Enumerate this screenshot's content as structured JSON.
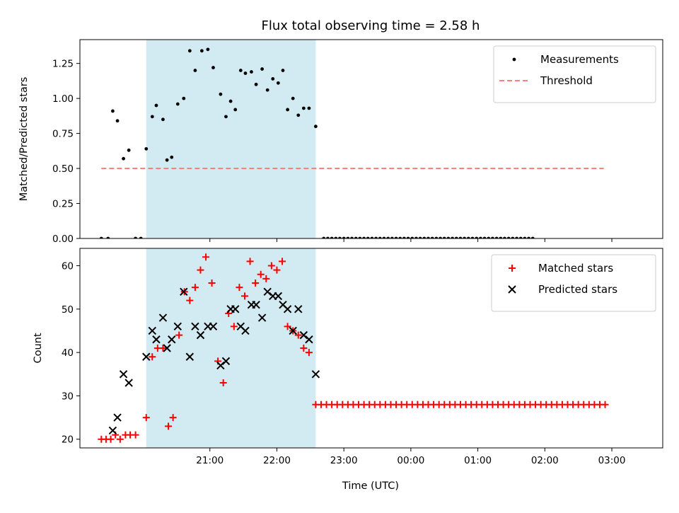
{
  "chart_data": {
    "title": "Flux total observing time = 2.58 h",
    "xlabel": "Time (UTC)",
    "time_unit": "hours after 20:00 UTC",
    "xlim": [
      -0.94,
      7.76
    ],
    "x_ticks": [
      {
        "x": 1,
        "label": "21:00"
      },
      {
        "x": 2,
        "label": "22:00"
      },
      {
        "x": 3,
        "label": "23:00"
      },
      {
        "x": 4,
        "label": "00:00"
      },
      {
        "x": 5,
        "label": "01:00"
      },
      {
        "x": 6,
        "label": "02:00"
      },
      {
        "x": 7,
        "label": "03:00"
      }
    ],
    "colors": {
      "measurement": "#000000",
      "threshold": "#ff7f7f",
      "matched": "#ff0000",
      "predicted": "#000000",
      "shading": "#add8e6"
    },
    "panels": [
      {
        "type": "scatter",
        "ylabel": "Matched/Predicted stars",
        "ylim": [
          0,
          1.42
        ],
        "y_ticks": [
          "0.00",
          "0.25",
          "0.50",
          "0.75",
          "1.00",
          "1.25"
        ],
        "legend_position": "upper-right",
        "shaded_span": [
          0.05,
          2.58
        ],
        "threshold": {
          "name": "Threshold",
          "y": 0.5,
          "x_range": [
            -0.62,
            6.88
          ]
        },
        "series": [
          {
            "name": "Measurements",
            "points": [
              [
                -0.62,
                0
              ],
              [
                -0.52,
                0
              ],
              [
                -0.45,
                0.91
              ],
              [
                -0.38,
                0.84
              ],
              [
                -0.29,
                0.57
              ],
              [
                -0.21,
                0.63
              ],
              [
                -0.11,
                0
              ],
              [
                -0.03,
                0
              ],
              [
                0.05,
                0.64
              ],
              [
                0.14,
                0.87
              ],
              [
                0.2,
                0.95
              ],
              [
                0.3,
                0.85
              ],
              [
                0.36,
                0.56
              ],
              [
                0.43,
                0.58
              ],
              [
                0.52,
                0.96
              ],
              [
                0.61,
                1.0
              ],
              [
                0.7,
                1.34
              ],
              [
                0.78,
                1.2
              ],
              [
                0.88,
                1.34
              ],
              [
                0.97,
                1.35
              ],
              [
                1.05,
                1.22
              ],
              [
                1.16,
                1.03
              ],
              [
                1.24,
                0.87
              ],
              [
                1.31,
                0.98
              ],
              [
                1.38,
                0.92
              ],
              [
                1.46,
                1.2
              ],
              [
                1.53,
                1.18
              ],
              [
                1.62,
                1.19
              ],
              [
                1.69,
                1.1
              ],
              [
                1.78,
                1.21
              ],
              [
                1.86,
                1.06
              ],
              [
                1.94,
                1.14
              ],
              [
                2.02,
                1.11
              ],
              [
                2.09,
                1.2
              ],
              [
                2.16,
                0.92
              ],
              [
                2.24,
                1.0
              ],
              [
                2.32,
                0.88
              ],
              [
                2.4,
                0.93
              ],
              [
                2.48,
                0.93
              ],
              [
                2.58,
                0.8
              ],
              [
                2.7,
                0
              ],
              [
                2.76,
                0
              ],
              [
                2.82,
                0
              ],
              [
                2.88,
                0
              ],
              [
                2.94,
                0
              ],
              [
                3.0,
                0
              ],
              [
                3.06,
                0
              ],
              [
                3.12,
                0
              ],
              [
                3.18,
                0
              ],
              [
                3.24,
                0
              ],
              [
                3.3,
                0
              ],
              [
                3.36,
                0
              ],
              [
                3.42,
                0
              ],
              [
                3.48,
                0
              ],
              [
                3.54,
                0
              ],
              [
                3.6,
                0
              ],
              [
                3.66,
                0
              ],
              [
                3.72,
                0
              ],
              [
                3.78,
                0
              ],
              [
                3.84,
                0
              ],
              [
                3.9,
                0
              ],
              [
                3.96,
                0
              ],
              [
                4.02,
                0
              ],
              [
                4.08,
                0
              ],
              [
                4.14,
                0
              ],
              [
                4.2,
                0
              ],
              [
                4.26,
                0
              ],
              [
                4.32,
                0
              ],
              [
                4.38,
                0
              ],
              [
                4.44,
                0
              ],
              [
                4.5,
                0
              ],
              [
                4.56,
                0
              ],
              [
                4.62,
                0
              ],
              [
                4.68,
                0
              ],
              [
                4.74,
                0
              ],
              [
                4.8,
                0
              ],
              [
                4.86,
                0
              ],
              [
                4.92,
                0
              ],
              [
                4.98,
                0
              ],
              [
                5.04,
                0
              ],
              [
                5.1,
                0
              ],
              [
                5.16,
                0
              ],
              [
                5.22,
                0
              ],
              [
                5.28,
                0
              ],
              [
                5.34,
                0
              ],
              [
                5.4,
                0
              ],
              [
                5.46,
                0
              ],
              [
                5.52,
                0
              ],
              [
                5.58,
                0
              ],
              [
                5.64,
                0
              ],
              [
                5.7,
                0
              ],
              [
                5.76,
                0
              ],
              [
                5.82,
                0
              ]
            ]
          }
        ]
      },
      {
        "type": "scatter",
        "ylabel": "Count",
        "ylim": [
          18,
          64
        ],
        "y_ticks": [
          "20",
          "30",
          "40",
          "50",
          "60"
        ],
        "legend_position": "upper-right",
        "shaded_span": [
          0.05,
          2.58
        ],
        "series": [
          {
            "name": "Matched stars",
            "marker": "plus",
            "points": [
              [
                -0.62,
                20
              ],
              [
                -0.55,
                20
              ],
              [
                -0.48,
                20
              ],
              [
                -0.41,
                21
              ],
              [
                -0.34,
                20
              ],
              [
                -0.26,
                21
              ],
              [
                -0.19,
                21
              ],
              [
                -0.11,
                21
              ],
              [
                0.05,
                25
              ],
              [
                0.14,
                39
              ],
              [
                0.22,
                41
              ],
              [
                0.3,
                41
              ],
              [
                0.38,
                23
              ],
              [
                0.45,
                25
              ],
              [
                0.54,
                44
              ],
              [
                0.62,
                54
              ],
              [
                0.7,
                52
              ],
              [
                0.78,
                55
              ],
              [
                0.86,
                59
              ],
              [
                0.94,
                62
              ],
              [
                1.03,
                56
              ],
              [
                1.12,
                38
              ],
              [
                1.2,
                33
              ],
              [
                1.28,
                49
              ],
              [
                1.36,
                46
              ],
              [
                1.44,
                55
              ],
              [
                1.52,
                53
              ],
              [
                1.6,
                61
              ],
              [
                1.68,
                56
              ],
              [
                1.76,
                58
              ],
              [
                1.84,
                57
              ],
              [
                1.92,
                60
              ],
              [
                2.0,
                59
              ],
              [
                2.08,
                61
              ],
              [
                2.16,
                46
              ],
              [
                2.24,
                45
              ],
              [
                2.32,
                44
              ],
              [
                2.4,
                41
              ],
              [
                2.48,
                40
              ],
              [
                2.58,
                28
              ],
              [
                2.66,
                28
              ],
              [
                2.74,
                28
              ],
              [
                2.82,
                28
              ],
              [
                2.9,
                28
              ],
              [
                2.98,
                28
              ],
              [
                3.06,
                28
              ],
              [
                3.14,
                28
              ],
              [
                3.22,
                28
              ],
              [
                3.3,
                28
              ],
              [
                3.38,
                28
              ],
              [
                3.46,
                28
              ],
              [
                3.54,
                28
              ],
              [
                3.62,
                28
              ],
              [
                3.7,
                28
              ],
              [
                3.78,
                28
              ],
              [
                3.86,
                28
              ],
              [
                3.94,
                28
              ],
              [
                4.02,
                28
              ],
              [
                4.1,
                28
              ],
              [
                4.18,
                28
              ],
              [
                4.26,
                28
              ],
              [
                4.34,
                28
              ],
              [
                4.42,
                28
              ],
              [
                4.5,
                28
              ],
              [
                4.58,
                28
              ],
              [
                4.66,
                28
              ],
              [
                4.74,
                28
              ],
              [
                4.82,
                28
              ],
              [
                4.9,
                28
              ],
              [
                4.98,
                28
              ],
              [
                5.06,
                28
              ],
              [
                5.14,
                28
              ],
              [
                5.22,
                28
              ],
              [
                5.3,
                28
              ],
              [
                5.38,
                28
              ],
              [
                5.46,
                28
              ],
              [
                5.54,
                28
              ],
              [
                5.62,
                28
              ],
              [
                5.7,
                28
              ],
              [
                5.78,
                28
              ],
              [
                5.86,
                28
              ],
              [
                5.94,
                28
              ],
              [
                6.02,
                28
              ],
              [
                6.1,
                28
              ],
              [
                6.18,
                28
              ],
              [
                6.26,
                28
              ],
              [
                6.34,
                28
              ],
              [
                6.42,
                28
              ],
              [
                6.5,
                28
              ],
              [
                6.58,
                28
              ],
              [
                6.66,
                28
              ],
              [
                6.74,
                28
              ],
              [
                6.82,
                28
              ],
              [
                6.9,
                28
              ]
            ]
          },
          {
            "name": "Predicted stars",
            "marker": "cross",
            "points": [
              [
                -0.45,
                22
              ],
              [
                -0.38,
                25
              ],
              [
                -0.29,
                35
              ],
              [
                -0.21,
                33
              ],
              [
                0.05,
                39
              ],
              [
                0.14,
                45
              ],
              [
                0.2,
                43
              ],
              [
                0.3,
                48
              ],
              [
                0.36,
                41
              ],
              [
                0.43,
                43
              ],
              [
                0.52,
                46
              ],
              [
                0.61,
                54
              ],
              [
                0.7,
                39
              ],
              [
                0.78,
                46
              ],
              [
                0.86,
                44
              ],
              [
                0.97,
                46
              ],
              [
                1.05,
                46
              ],
              [
                1.16,
                37
              ],
              [
                1.24,
                38
              ],
              [
                1.31,
                50
              ],
              [
                1.38,
                50
              ],
              [
                1.46,
                46
              ],
              [
                1.53,
                45
              ],
              [
                1.62,
                51
              ],
              [
                1.69,
                51
              ],
              [
                1.78,
                48
              ],
              [
                1.86,
                54
              ],
              [
                1.94,
                53
              ],
              [
                2.02,
                53
              ],
              [
                2.09,
                51
              ],
              [
                2.16,
                50
              ],
              [
                2.24,
                45
              ],
              [
                2.32,
                50
              ],
              [
                2.4,
                44
              ],
              [
                2.48,
                43
              ],
              [
                2.58,
                35
              ]
            ]
          }
        ]
      }
    ]
  }
}
